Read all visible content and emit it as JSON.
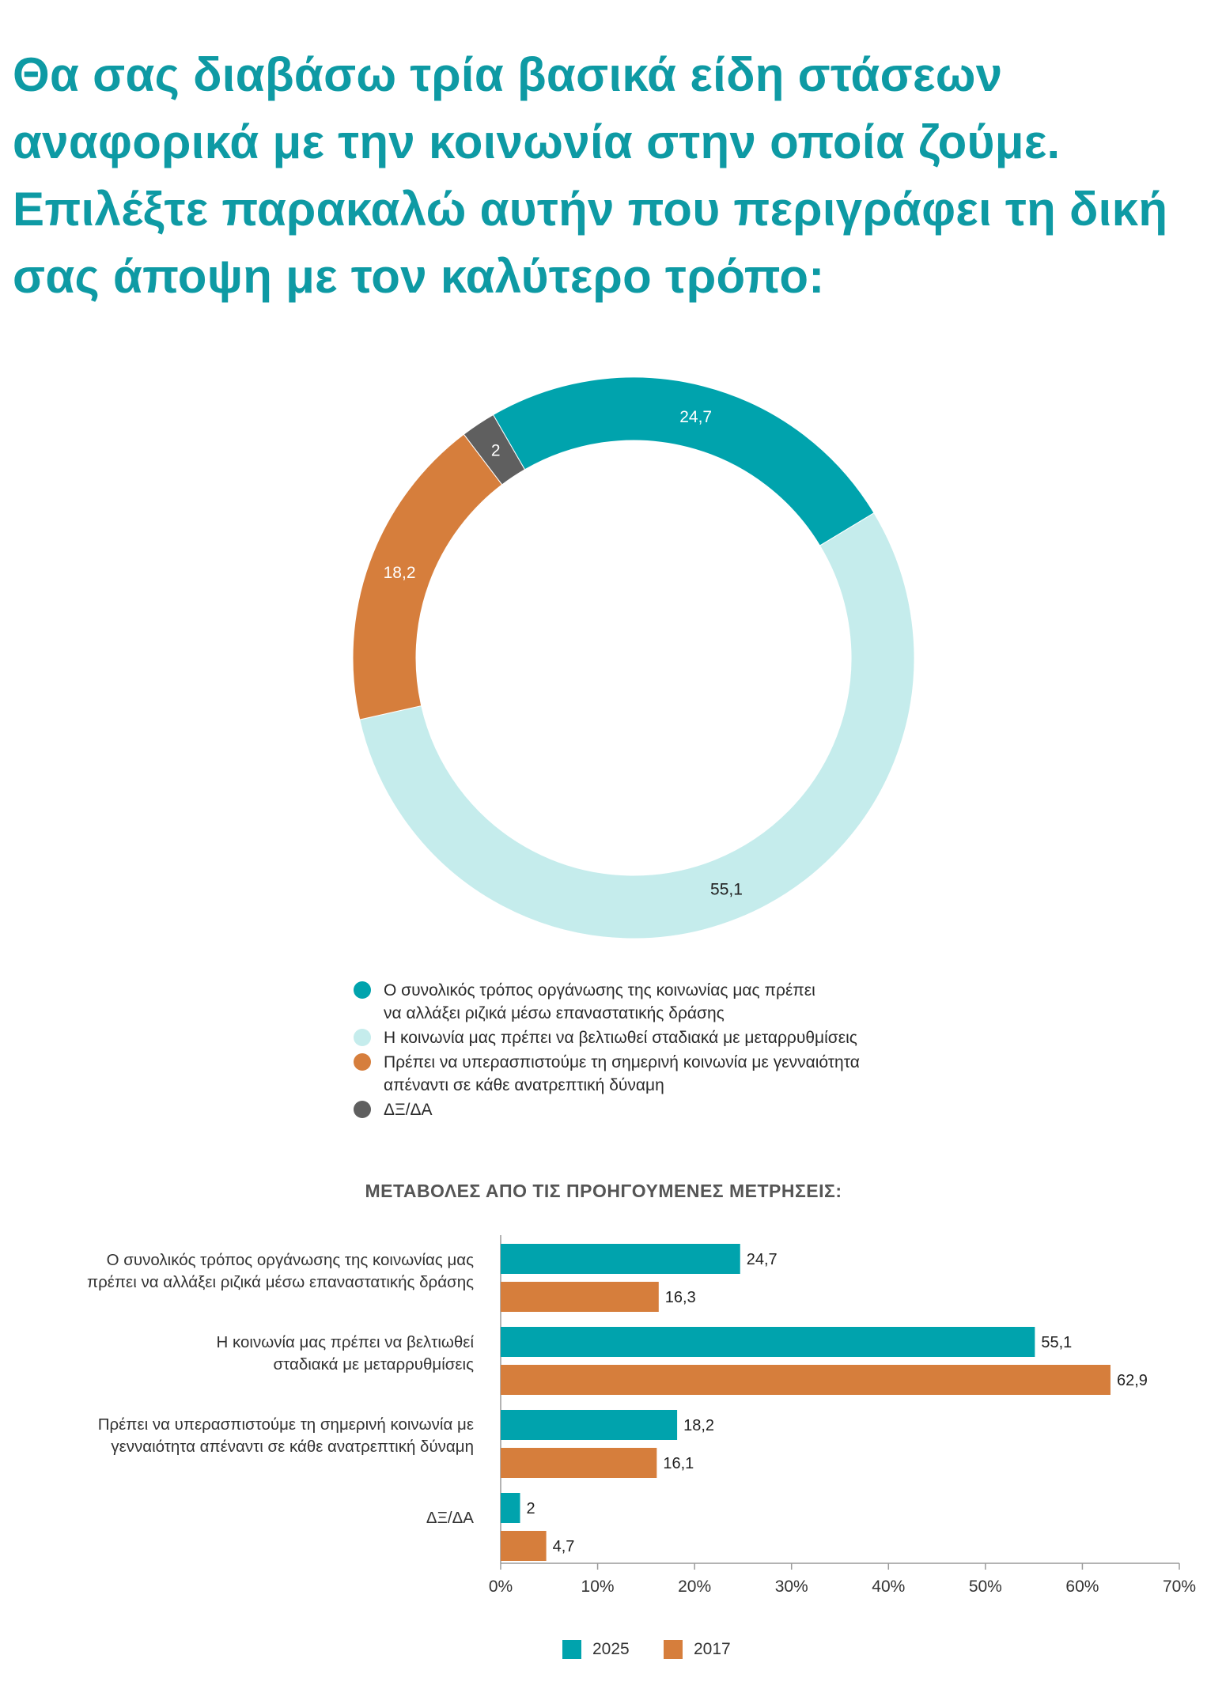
{
  "title_lines": [
    "Θα σας διαβάσω τρία βασικά είδη στάσεων",
    "αναφορικά με την κοινωνία στην οποία ζούμε.",
    "Επιλέξτε παρακαλώ αυτήν που περιγράφει τη δική",
    "σας άποψη με τον καλύτερο τρόπο:"
  ],
  "colors": {
    "teal": "#00a3ad",
    "light_teal": "#c5ecec",
    "orange": "#d67e3c",
    "gray": "#5f5f5f",
    "title": "#0e9aa4"
  },
  "chart_data": [
    {
      "type": "pie",
      "variant": "donut",
      "slices": [
        {
          "label": "Ο συνολικός τρόπος οργάνωσης της κοινωνίας μας πρέπει να αλλάξει ριζικά μέσω επαναστατικής δράσης",
          "value": 24.7,
          "value_label": "24,7",
          "color": "#00a3ad"
        },
        {
          "label": "Η κοινωνία μας πρέπει να βελτιωθεί σταδιακά με μεταρρυθμίσεις",
          "value": 55.1,
          "value_label": "55,1",
          "color": "#c5ecec"
        },
        {
          "label": "Πρέπει να υπερασπιστούμε τη σημερινή κοινωνία με γενναιότητα απέναντι σε κάθε ανατρεπτική δύναμη",
          "value": 18.2,
          "value_label": "18,2",
          "color": "#d67e3c"
        },
        {
          "label": "ΔΞ/ΔΑ",
          "value": 2,
          "value_label": "2",
          "color": "#5f5f5f"
        }
      ],
      "legend": [
        {
          "lines": [
            "Ο συνολικός τρόπος οργάνωσης της κοινωνίας μας πρέπει",
            "να αλλάξει ριζικά μέσω επαναστατικής δράσης"
          ],
          "color": "#00a3ad"
        },
        {
          "lines": [
            "Η κοινωνία μας πρέπει να βελτιωθεί σταδιακά με μεταρρυθμίσεις"
          ],
          "color": "#c5ecec"
        },
        {
          "lines": [
            "Πρέπει να υπερασπιστούμε τη σημερινή κοινωνία με γενναιότητα",
            "απέναντι σε κάθε ανατρεπτική δύναμη"
          ],
          "color": "#d67e3c"
        },
        {
          "lines": [
            "ΔΞ/ΔΑ"
          ],
          "color": "#5f5f5f"
        }
      ]
    },
    {
      "type": "bar",
      "orientation": "horizontal",
      "title": "ΜΕΤΑΒΟΛΕΣ ΑΠΟ ΤΙΣ ΠΡΟΗΓΟΥΜΕΝΕΣ ΜΕΤΡΗΣΕΙΣ:",
      "categories": [
        [
          "Ο συνολικός τρόπος οργάνωσης της κοινωνίας μας",
          "πρέπει να αλλάξει ριζικά μέσω επαναστατικής δράσης"
        ],
        [
          "Η κοινωνία μας πρέπει να βελτιωθεί",
          "σταδιακά με μεταρρυθμίσεις"
        ],
        [
          "Πρέπει να υπερασπιστούμε τη σημερινή κοινωνία με",
          "γενναιότητα απέναντι σε κάθε ανατρεπτική δύναμη"
        ],
        [
          "ΔΞ/ΔΑ"
        ]
      ],
      "series": [
        {
          "name": "2025",
          "color": "#00a3ad",
          "values": [
            24.7,
            55.1,
            18.2,
            2
          ],
          "value_labels": [
            "24,7",
            "55,1",
            "18,2",
            "2"
          ]
        },
        {
          "name": "2017",
          "color": "#d67e3c",
          "values": [
            16.3,
            62.9,
            16.1,
            4.7
          ],
          "value_labels": [
            "16,3",
            "62,9",
            "16,1",
            "4,7"
          ]
        }
      ],
      "xlim": [
        0,
        70
      ],
      "x_ticks": [
        "0%",
        "10%",
        "20%",
        "30%",
        "40%",
        "50%",
        "60%",
        "70%"
      ],
      "grid": false,
      "legend_position": "bottom"
    }
  ]
}
